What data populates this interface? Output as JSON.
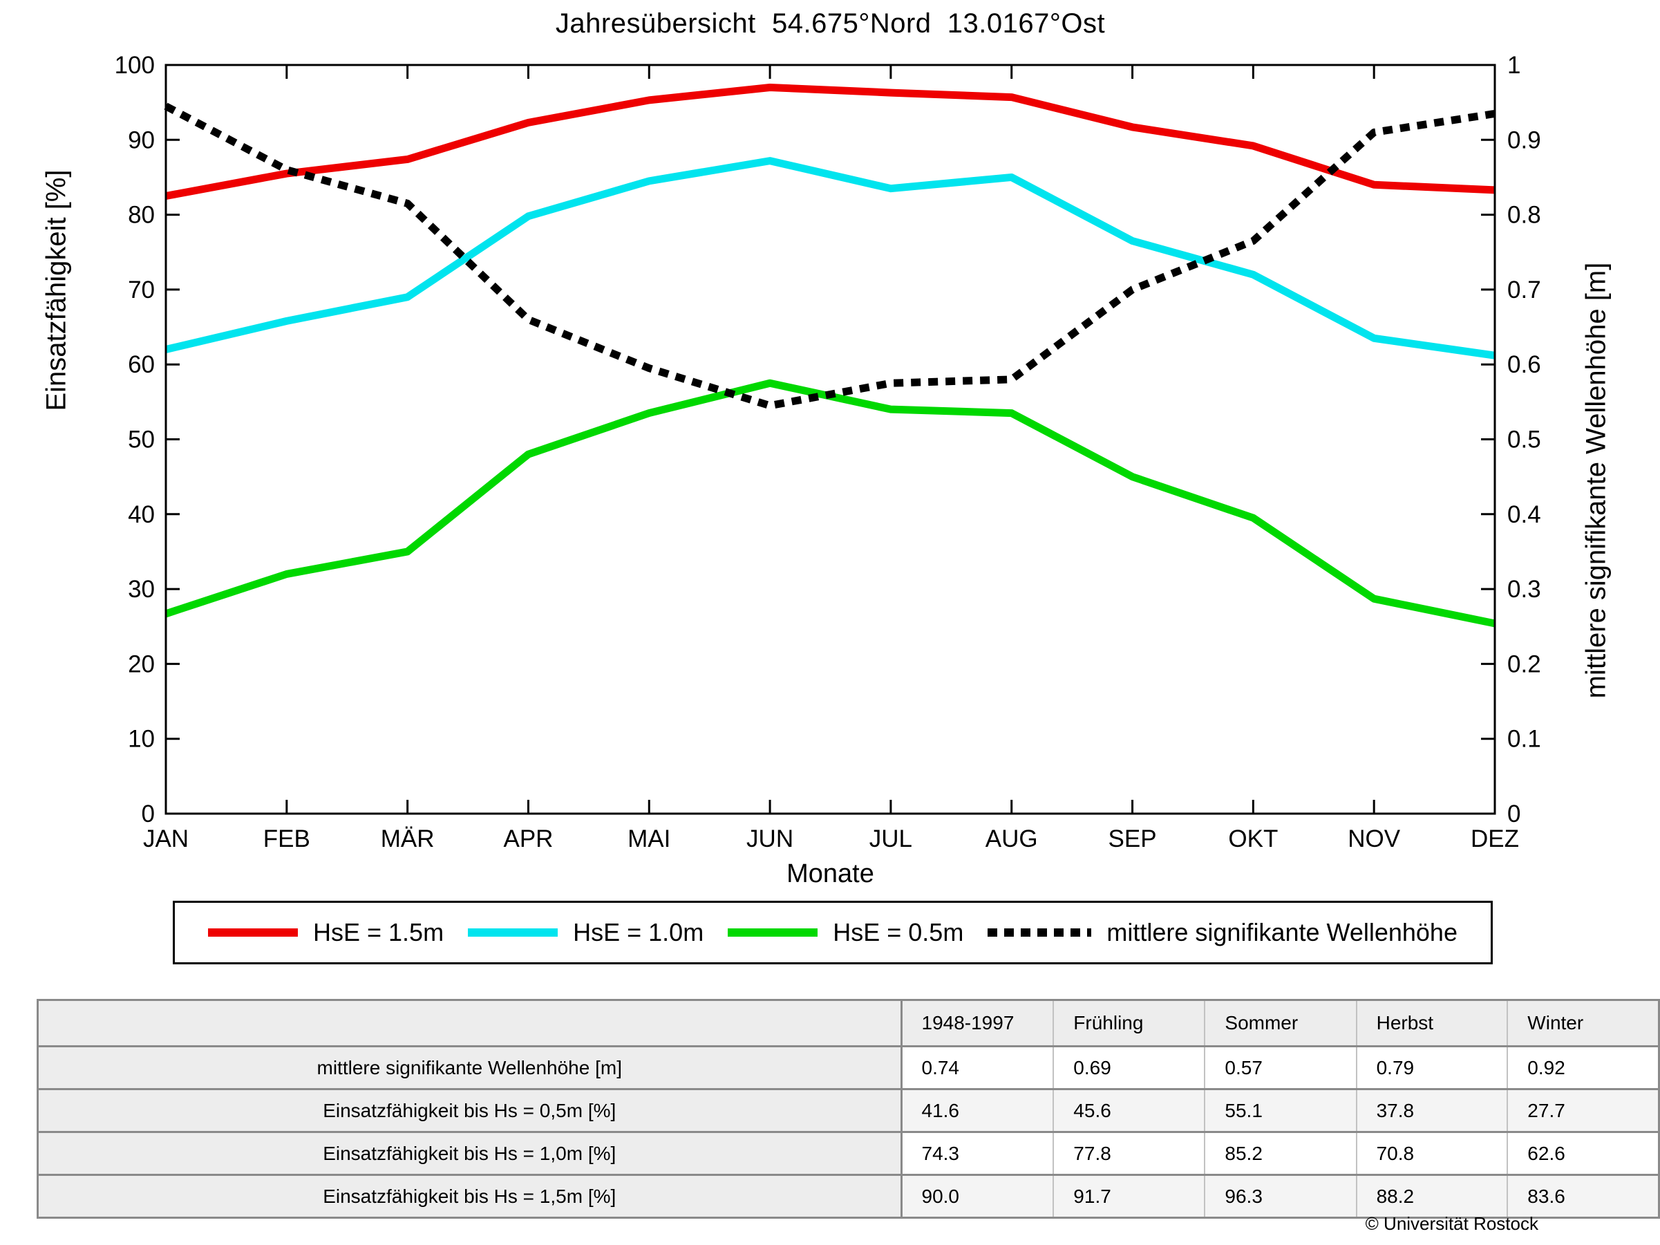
{
  "chart_data": {
    "type": "line",
    "title": "Jahresübersicht  54.675°Nord  13.0167°Ost",
    "x": {
      "label": "Monate",
      "categories": [
        "JAN",
        "FEB",
        "MÄR",
        "APR",
        "MAI",
        "JUN",
        "JUL",
        "AUG",
        "SEP",
        "OKT",
        "NOV",
        "DEZ"
      ]
    },
    "axes": {
      "left": {
        "label": "Einsatzfähigkeit [%]",
        "min": 0,
        "max": 100,
        "ticks": [
          0,
          10,
          20,
          30,
          40,
          50,
          60,
          70,
          80,
          90,
          100
        ]
      },
      "right": {
        "label": "mittlere signifikante Wellenhöhe [m]",
        "min": 0,
        "max": 1,
        "tick_labels": [
          "0",
          "0.1",
          "0.2",
          "0.3",
          "0.4",
          "0.5",
          "0.6",
          "0.7",
          "0.8",
          "0.9",
          "1"
        ]
      }
    },
    "grid": false,
    "legend_position": "below",
    "series": [
      {
        "name": "HsE = 1.5m",
        "color": "#ee0000",
        "style": "solid",
        "axis": "left",
        "values": [
          82.5,
          85.5,
          87.4,
          92.3,
          95.3,
          97.0,
          96.3,
          95.7,
          91.7,
          89.2,
          84.0,
          83.3
        ]
      },
      {
        "name": "HsE = 1.0m",
        "color": "#00e4ee",
        "style": "solid",
        "axis": "left",
        "values": [
          62.0,
          65.8,
          69.0,
          79.8,
          84.5,
          87.2,
          83.5,
          85.0,
          76.5,
          72.0,
          63.5,
          61.2
        ]
      },
      {
        "name": "HsE = 0.5m",
        "color": "#00d800",
        "style": "solid",
        "axis": "left",
        "values": [
          26.7,
          32.0,
          35.0,
          48.0,
          53.5,
          57.5,
          54.0,
          53.5,
          45.0,
          39.5,
          28.7,
          25.4
        ]
      },
      {
        "name": "mittlere signifikante Wellenhöhe",
        "color": "#000000",
        "style": "dotted",
        "axis": "right",
        "values": [
          0.945,
          0.86,
          0.815,
          0.66,
          0.595,
          0.545,
          0.575,
          0.58,
          0.7,
          0.765,
          0.91,
          0.935
        ]
      }
    ]
  },
  "table": {
    "headers": [
      "1948-1997",
      "Frühling",
      "Sommer",
      "Herbst",
      "Winter"
    ],
    "rows": [
      {
        "label": "mittlere signifikante Wellenhöhe [m]",
        "values": [
          "0.74",
          "0.69",
          "0.57",
          "0.79",
          "0.92"
        ]
      },
      {
        "label": "Einsatzfähigkeit bis Hs = 0,5m [%]",
        "values": [
          "41.6",
          "45.6",
          "55.1",
          "37.8",
          "27.7"
        ]
      },
      {
        "label": "Einsatzfähigkeit bis Hs = 1,0m [%]",
        "values": [
          "74.3",
          "77.8",
          "85.2",
          "70.8",
          "62.6"
        ]
      },
      {
        "label": "Einsatzfähigkeit bis Hs = 1,5m [%]",
        "values": [
          "90.0",
          "91.7",
          "96.3",
          "88.2",
          "83.6"
        ]
      }
    ]
  },
  "footer": {
    "copyright": "© Universität Rostock"
  }
}
